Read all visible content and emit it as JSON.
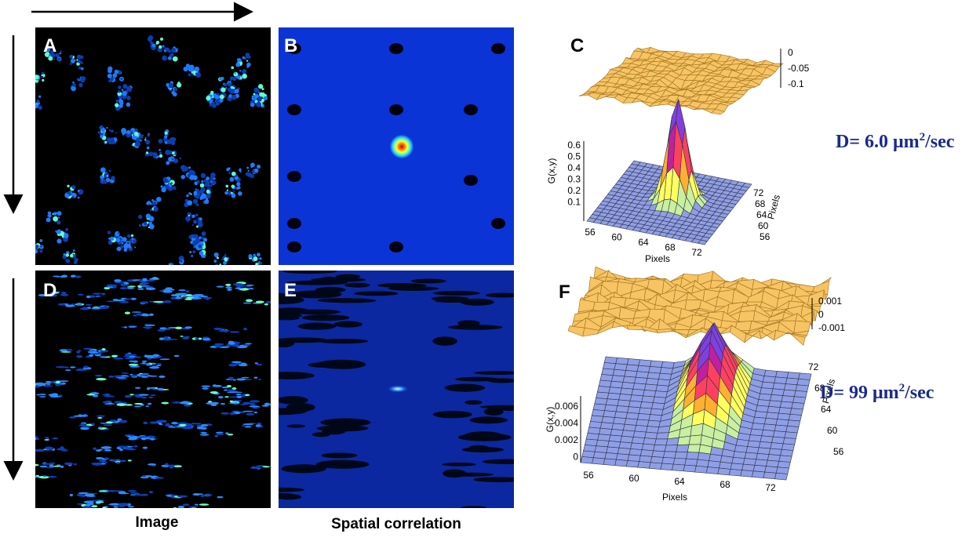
{
  "panel_labels": [
    "A",
    "B",
    "C",
    "D",
    "E",
    "F"
  ],
  "captions": [
    "Image",
    "Spatial correlation"
  ],
  "plot_c": {
    "z_ticks": [
      "0",
      "-0.05",
      "-0.1"
    ],
    "g_label": "G(x,y)",
    "g_ticks": [
      "0.6",
      "0.5",
      "0.4",
      "0.3",
      "0.2",
      "0.1"
    ],
    "x_ticks": [
      "56",
      "60",
      "64",
      "68",
      "72"
    ],
    "x_label": "Pixels",
    "depth_ticks": [
      "72",
      "68",
      "64",
      "60",
      "56"
    ],
    "depth_label": "Pixels"
  },
  "plot_f": {
    "z_ticks": [
      "0.001",
      "0",
      "-0.001"
    ],
    "g_label": "G(x,y)",
    "g_ticks": [
      "0.006",
      "0.004",
      "0.002",
      "0"
    ],
    "x_ticks": [
      "56",
      "60",
      "64",
      "68",
      "72"
    ],
    "x_label": "Pixels",
    "depth_ticks": [
      "72",
      "68",
      "64",
      "60",
      "56"
    ],
    "depth_label": "Pixels"
  },
  "diffusion": [
    {
      "prefix": "D= 6.0 μm",
      "sup": "2",
      "suffix": "/sec"
    },
    {
      "prefix": "D= 99 μm",
      "sup": "2",
      "suffix": "/sec"
    }
  ]
}
